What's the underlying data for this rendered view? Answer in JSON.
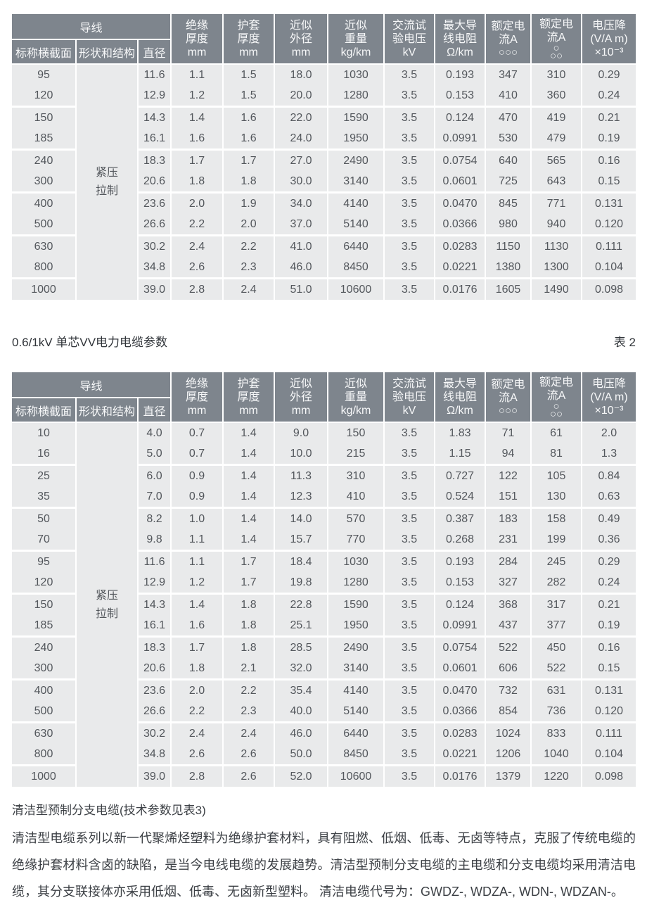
{
  "section_title": {
    "text": "0.6/1kV 单芯VV电力电缆参数",
    "table_label": "表 2"
  },
  "header": {
    "conductor_group_label": "导线",
    "conductor_sub_labels": [
      "标称横截面",
      "形状和结构",
      "直径"
    ],
    "columns": [
      {
        "name": "insulation-thickness",
        "lines": [
          "绝缘",
          "厚度",
          "mm"
        ]
      },
      {
        "name": "sheath-thickness",
        "lines": [
          "护套",
          "厚度",
          "mm"
        ]
      },
      {
        "name": "approx-outer-diameter",
        "lines": [
          "近似",
          "外径",
          "mm"
        ]
      },
      {
        "name": "approx-weight",
        "lines": [
          "近似",
          "重量",
          "kg/km"
        ]
      },
      {
        "name": "ac-test-voltage",
        "lines": [
          "交流试",
          "验电压",
          "kV"
        ]
      },
      {
        "name": "max-conductor-resistance",
        "lines": [
          "最大导",
          "线电阻",
          "Ω/km"
        ]
      },
      {
        "name": "rated-current-flat",
        "lines": [
          "额定电",
          "流A"
        ],
        "icon": "three-circles-row-icon",
        "circle_lines": [
          "○○○"
        ]
      },
      {
        "name": "rated-current-trefoil",
        "lines": [
          "额定电",
          "流A"
        ],
        "icon": "circle-trefoil-icon",
        "circle_lines": [
          "○",
          "○○"
        ]
      },
      {
        "name": "voltage-drop",
        "lines": [
          "电压降",
          "(V/A m)",
          "×10⁻³"
        ]
      }
    ]
  },
  "table1": {
    "shape_structure_label": [
      "紧压",
      "拉制"
    ],
    "rows": [
      [
        "95",
        "11.6",
        "1.1",
        "1.5",
        "18.0",
        "1030",
        "3.5",
        "0.193",
        "347",
        "310",
        "0.29"
      ],
      [
        "120",
        "12.9",
        "1.2",
        "1.5",
        "20.0",
        "1280",
        "3.5",
        "0.153",
        "410",
        "360",
        "0.24"
      ],
      [
        "150",
        "14.3",
        "1.4",
        "1.6",
        "22.0",
        "1590",
        "3.5",
        "0.124",
        "470",
        "419",
        "0.21"
      ],
      [
        "185",
        "16.1",
        "1.6",
        "1.6",
        "24.0",
        "1950",
        "3.5",
        "0.0991",
        "530",
        "479",
        "0.19"
      ],
      [
        "240",
        "18.3",
        "1.7",
        "1.7",
        "27.0",
        "2490",
        "3.5",
        "0.0754",
        "640",
        "565",
        "0.16"
      ],
      [
        "300",
        "20.6",
        "1.8",
        "1.8",
        "30.0",
        "3140",
        "3.5",
        "0.0601",
        "725",
        "643",
        "0.15"
      ],
      [
        "400",
        "23.6",
        "2.0",
        "1.9",
        "34.0",
        "4140",
        "3.5",
        "0.0470",
        "845",
        "771",
        "0.131"
      ],
      [
        "500",
        "26.6",
        "2.2",
        "2.0",
        "37.0",
        "5140",
        "3.5",
        "0.0366",
        "980",
        "940",
        "0.120"
      ],
      [
        "630",
        "30.2",
        "2.4",
        "2.2",
        "41.0",
        "6440",
        "3.5",
        "0.0283",
        "1150",
        "1130",
        "0.111"
      ],
      [
        "800",
        "34.8",
        "2.6",
        "2.3",
        "46.0",
        "8450",
        "3.5",
        "0.0221",
        "1380",
        "1300",
        "0.104"
      ],
      [
        "1000",
        "39.0",
        "2.8",
        "2.4",
        "51.0",
        "10600",
        "3.5",
        "0.0176",
        "1605",
        "1490",
        "0.098"
      ]
    ]
  },
  "table2": {
    "shape_structure_label": [
      "紧压",
      "拉制"
    ],
    "rows": [
      [
        "10",
        "4.0",
        "0.7",
        "1.4",
        "9.0",
        "150",
        "3.5",
        "1.83",
        "71",
        "61",
        "2.0"
      ],
      [
        "16",
        "5.0",
        "0.7",
        "1.4",
        "10.0",
        "215",
        "3.5",
        "1.15",
        "94",
        "81",
        "1.3"
      ],
      [
        "25",
        "6.0",
        "0.9",
        "1.4",
        "11.3",
        "310",
        "3.5",
        "0.727",
        "122",
        "105",
        "0.84"
      ],
      [
        "35",
        "7.0",
        "0.9",
        "1.4",
        "12.3",
        "410",
        "3.5",
        "0.524",
        "151",
        "130",
        "0.63"
      ],
      [
        "50",
        "8.2",
        "1.0",
        "1.4",
        "14.0",
        "570",
        "3.5",
        "0.387",
        "183",
        "158",
        "0.49"
      ],
      [
        "70",
        "9.8",
        "1.1",
        "1.4",
        "15.7",
        "770",
        "3.5",
        "0.268",
        "231",
        "199",
        "0.36"
      ],
      [
        "95",
        "11.6",
        "1.1",
        "1.7",
        "18.4",
        "1030",
        "3.5",
        "0.193",
        "284",
        "245",
        "0.29"
      ],
      [
        "120",
        "12.9",
        "1.2",
        "1.7",
        "19.8",
        "1280",
        "3.5",
        "0.153",
        "327",
        "282",
        "0.24"
      ],
      [
        "150",
        "14.3",
        "1.4",
        "1.8",
        "22.8",
        "1590",
        "3.5",
        "0.124",
        "368",
        "317",
        "0.21"
      ],
      [
        "185",
        "16.1",
        "1.6",
        "1.8",
        "25.1",
        "1950",
        "3.5",
        "0.0991",
        "437",
        "377",
        "0.19"
      ],
      [
        "240",
        "18.3",
        "1.7",
        "1.8",
        "28.5",
        "2490",
        "3.5",
        "0.0754",
        "522",
        "450",
        "0.16"
      ],
      [
        "300",
        "20.6",
        "1.8",
        "2.1",
        "32.0",
        "3140",
        "3.5",
        "0.0601",
        "606",
        "522",
        "0.15"
      ],
      [
        "400",
        "23.6",
        "2.0",
        "2.2",
        "35.4",
        "4140",
        "3.5",
        "0.0470",
        "732",
        "631",
        "0.131"
      ],
      [
        "500",
        "26.6",
        "2.2",
        "2.3",
        "40.0",
        "5140",
        "3.5",
        "0.0366",
        "854",
        "736",
        "0.120"
      ],
      [
        "630",
        "30.2",
        "2.4",
        "2.4",
        "46.0",
        "6440",
        "3.5",
        "0.0283",
        "1024",
        "833",
        "0.111"
      ],
      [
        "800",
        "34.8",
        "2.6",
        "2.6",
        "50.0",
        "8450",
        "3.5",
        "0.0221",
        "1206",
        "1040",
        "0.104"
      ],
      [
        "1000",
        "39.0",
        "2.8",
        "2.6",
        "52.0",
        "10600",
        "3.5",
        "0.0176",
        "1379",
        "1220",
        "0.098"
      ]
    ]
  },
  "footer": {
    "heading": "清洁型预制分支电缆(技术参数见表3)",
    "body": "清洁型电缆系列以新一代聚烯烃塑料为绝缘护套材料，具有阻燃、低烟、低毒、无卤等特点，克服了传统电缆的绝缘护套材料含卤的缺陷，是当今电线电缆的发展趋势。清洁型预制分支电缆的主电缆和分支电缆均采用清洁电缆，其分支联接体亦采用低烟、低毒、无卤新型塑料。 清洁电缆代号为：GWDZ-, WDZA-, WDN-, WDZAN-。"
  },
  "colors": {
    "header_bg": "#7e858d",
    "header_text": "#f7f8f9",
    "row_bg": "#e9eaeb",
    "cell_text": "#53575c",
    "divider": "#ffffff"
  }
}
